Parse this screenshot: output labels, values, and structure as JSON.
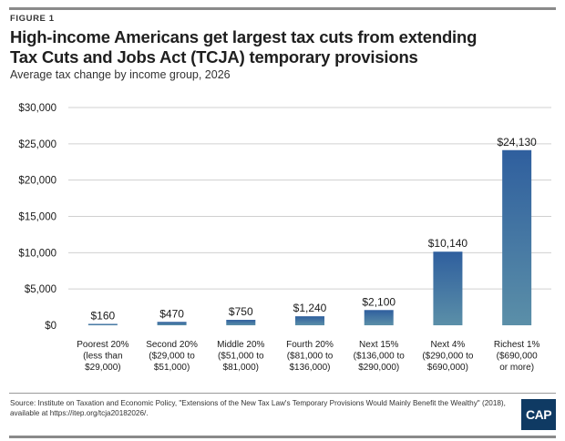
{
  "header": {
    "figure_label": "FIGURE 1",
    "title": "High-income Americans get largest tax cuts from extending Tax Cuts and Jobs Act (TCJA) temporary provisions",
    "subtitle": "Average tax change by income group, 2026"
  },
  "footer": {
    "source": "Source: Institute on Taxation and Economic Policy, \"Extensions of the New Tax Law's Temporary Provisions Would Mainly Benefit the Wealthy\" (2018), available at https://itep.org/tcja20182026/.",
    "logo_text": "CAP"
  },
  "colors": {
    "bar_top": "#2f5f9e",
    "bar_bottom": "#5b8fa8",
    "gridline": "#d0d0d0",
    "axis_text": "#1a1a1a"
  },
  "chart_data": {
    "type": "bar",
    "title": "",
    "xlabel": "",
    "ylabel": "",
    "ylim": [
      0,
      30000
    ],
    "yticks": [
      0,
      5000,
      10000,
      15000,
      20000,
      25000,
      30000
    ],
    "ytick_labels": [
      "$0",
      "$5,000",
      "$10,000",
      "$15,000",
      "$20,000",
      "$25,000",
      "$30,000"
    ],
    "grid": true,
    "legend": "none",
    "categories": [
      [
        "Poorest 20%",
        "(less than",
        "$29,000)"
      ],
      [
        "Second 20%",
        "($29,000 to",
        "$51,000)"
      ],
      [
        "Middle 20%",
        "($51,000 to",
        "$81,000)"
      ],
      [
        "Fourth 20%",
        "($81,000 to",
        "$136,000)"
      ],
      [
        "Next 15%",
        "($136,000 to",
        "$290,000)"
      ],
      [
        "Next 4%",
        "($290,000 to",
        "$690,000)"
      ],
      [
        "Richest 1%",
        "($690,000",
        "or more)"
      ]
    ],
    "values": [
      160,
      470,
      750,
      1240,
      2100,
      10140,
      24130
    ],
    "value_labels": [
      "$160",
      "$470",
      "$750",
      "$1,240",
      "$2,100",
      "$10,140",
      "$24,130"
    ]
  }
}
